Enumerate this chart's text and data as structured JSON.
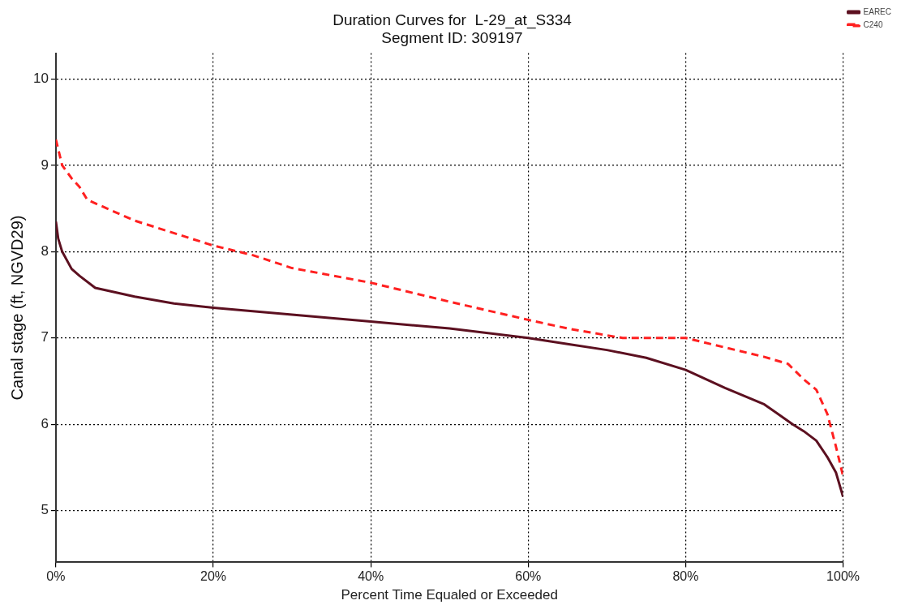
{
  "chart_data": {
    "type": "line",
    "title": "Duration Curves for  L-29_at_S334",
    "subtitle": "Segment ID: 309197",
    "xlabel": "Percent Time Equaled or Exceeded",
    "ylabel": "Canal stage (ft, NGVD29)",
    "xlim": [
      0,
      100
    ],
    "xticks": [
      {
        "value": 0,
        "label": "0%"
      },
      {
        "value": 20,
        "label": "20%"
      },
      {
        "value": 40,
        "label": "40%"
      },
      {
        "value": 60,
        "label": "60%"
      },
      {
        "value": 80,
        "label": "80%"
      },
      {
        "value": 100,
        "label": "100%"
      }
    ],
    "ylim": [
      4.4,
      10.3
    ],
    "yticks": [
      5,
      6,
      7,
      8,
      9,
      10
    ],
    "grid": true,
    "legend": "top right",
    "marker": "none",
    "series": [
      {
        "name": "EAREC",
        "color": "#5c1020",
        "line_style": "solid",
        "x": [
          0,
          0.3,
          0.8,
          2,
          3,
          5,
          10,
          15,
          20,
          30,
          40,
          50,
          60,
          65,
          70,
          75,
          80,
          85,
          90,
          93.6,
          95,
          96.6,
          98,
          99.1,
          100
        ],
        "values": [
          8.35,
          8.15,
          8.0,
          7.8,
          7.72,
          7.58,
          7.48,
          7.4,
          7.35,
          7.27,
          7.19,
          7.11,
          7.0,
          6.93,
          6.86,
          6.77,
          6.63,
          6.42,
          6.23,
          6.0,
          5.92,
          5.81,
          5.62,
          5.44,
          5.16
        ]
      },
      {
        "name": "C240",
        "color": "#ff2020",
        "line_style": "dashed",
        "x": [
          0,
          0.8,
          2,
          3,
          4,
          10,
          20,
          25,
          30,
          40,
          50,
          60,
          65,
          70,
          72,
          80,
          85,
          90,
          93,
          95,
          96.6,
          98,
          99.1,
          100
        ],
        "values": [
          9.3,
          9.0,
          8.85,
          8.75,
          8.6,
          8.36,
          8.07,
          7.96,
          7.81,
          7.64,
          7.42,
          7.21,
          7.11,
          7.03,
          7.0,
          7.0,
          6.89,
          6.78,
          6.7,
          6.52,
          6.4,
          6.12,
          5.74,
          5.4
        ]
      }
    ]
  }
}
